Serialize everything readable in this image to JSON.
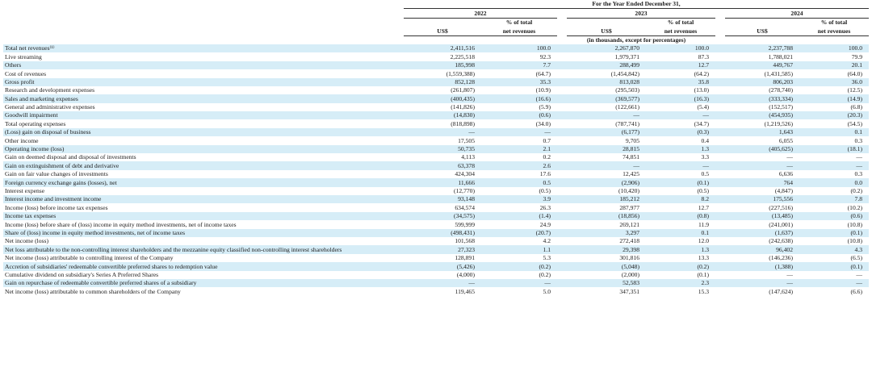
{
  "header": {
    "period_title": "For the Year Ended December 31,",
    "years": [
      "2022",
      "2023",
      "2024"
    ],
    "currency_label": "US$",
    "pct_label_line1": "% of total",
    "pct_label_line2": "net revenues",
    "units_note": "(in thousands, except for percentages)"
  },
  "rows": [
    {
      "label": "Total net revenues⁽¹⁾",
      "v2022": "2,411,516",
      "p2022": "100.0",
      "v2023": "2,267,870",
      "p2023": "100.0",
      "v2024": "2,237,788",
      "p2024": "100.0",
      "shade": true
    },
    {
      "label": "Live streaming",
      "v2022": "2,225,518",
      "p2022": "92.3",
      "v2023": "1,979,371",
      "p2023": "87.3",
      "v2024": "1,788,021",
      "p2024": "79.9",
      "shade": false
    },
    {
      "label": "Others",
      "v2022": "185,998",
      "p2022": "7.7",
      "v2023": "288,499",
      "p2023": "12.7",
      "v2024": "449,767",
      "p2024": "20.1",
      "shade": true
    },
    {
      "label": "Cost of revenues",
      "v2022": "(1,559,388)",
      "p2022": "(64.7)",
      "v2023": "(1,454,842)",
      "p2023": "(64.2)",
      "v2024": "(1,431,585)",
      "p2024": "(64.0)",
      "shade": false
    },
    {
      "label": "Gross profit",
      "v2022": "852,128",
      "p2022": "35.3",
      "v2023": "813,028",
      "p2023": "35.8",
      "v2024": "806,203",
      "p2024": "36.0",
      "shade": true
    },
    {
      "label": "Research and development expenses",
      "v2022": "(261,807)",
      "p2022": "(10.9)",
      "v2023": "(295,503)",
      "p2023": "(13.0)",
      "v2024": "(278,740)",
      "p2024": "(12.5)",
      "shade": false
    },
    {
      "label": "Sales and marketing expenses",
      "v2022": "(400,435)",
      "p2022": "(16.6)",
      "v2023": "(369,577)",
      "p2023": "(16.3)",
      "v2024": "(333,334)",
      "p2024": "(14.9)",
      "shade": true
    },
    {
      "label": "General and administrative expenses",
      "v2022": "(141,826)",
      "p2022": "(5.9)",
      "v2023": "(122,661)",
      "p2023": "(5.4)",
      "v2024": "(152,517)",
      "p2024": "(6.8)",
      "shade": false
    },
    {
      "label": "Goodwill impairment",
      "v2022": "(14,830)",
      "p2022": "(0.6)",
      "v2023": "—",
      "p2023": "—",
      "v2024": "(454,935)",
      "p2024": "(20.3)",
      "shade": true
    },
    {
      "label": "Total operating expenses",
      "v2022": "(818,898)",
      "p2022": "(34.0)",
      "v2023": "(787,741)",
      "p2023": "(34.7)",
      "v2024": "(1,219,526)",
      "p2024": "(54.5)",
      "shade": false
    },
    {
      "label": "(Loss) gain on disposal of business",
      "v2022": "—",
      "p2022": "—",
      "v2023": "(6,177)",
      "p2023": "(0.3)",
      "v2024": "1,643",
      "p2024": "0.1",
      "shade": true
    },
    {
      "label": "Other income",
      "v2022": "17,505",
      "p2022": "0.7",
      "v2023": "9,705",
      "p2023": "0.4",
      "v2024": "6,055",
      "p2024": "0.3",
      "shade": false
    },
    {
      "label": "Operating income (loss)",
      "v2022": "50,735",
      "p2022": "2.1",
      "v2023": "28,815",
      "p2023": "1.3",
      "v2024": "(405,625)",
      "p2024": "(18.1)",
      "shade": true
    },
    {
      "label": "Gain on deemed disposal and disposal of investments",
      "v2022": "4,113",
      "p2022": "0.2",
      "v2023": "74,851",
      "p2023": "3.3",
      "v2024": "—",
      "p2024": "—",
      "shade": false
    },
    {
      "label": "Gain on extinguishment of debt and derivative",
      "v2022": "63,378",
      "p2022": "2.6",
      "v2023": "—",
      "p2023": "—",
      "v2024": "—",
      "p2024": "—",
      "shade": true
    },
    {
      "label": "Gain on fair value changes of investments",
      "v2022": "424,304",
      "p2022": "17.6",
      "v2023": "12,425",
      "p2023": "0.5",
      "v2024": "6,636",
      "p2024": "0.3",
      "shade": false
    },
    {
      "label": "Foreign currency exchange gains (losses), net",
      "v2022": "11,666",
      "p2022": "0.5",
      "v2023": "(2,906)",
      "p2023": "(0.1)",
      "v2024": "764",
      "p2024": "0.0",
      "shade": true
    },
    {
      "label": "Interest expense",
      "v2022": "(12,770)",
      "p2022": "(0.5)",
      "v2023": "(10,420)",
      "p2023": "(0.5)",
      "v2024": "(4,847)",
      "p2024": "(0.2)",
      "shade": false
    },
    {
      "label": "Interest income and investment income",
      "v2022": "93,148",
      "p2022": "3.9",
      "v2023": "185,212",
      "p2023": "8.2",
      "v2024": "175,556",
      "p2024": "7.8",
      "shade": true
    },
    {
      "label": "Income (loss) before income tax expenses",
      "v2022": "634,574",
      "p2022": "26.3",
      "v2023": "287,977",
      "p2023": "12.7",
      "v2024": "(227,516)",
      "p2024": "(10.2)",
      "shade": false
    },
    {
      "label": "Income tax expenses",
      "v2022": "(34,575)",
      "p2022": "(1.4)",
      "v2023": "(18,856)",
      "p2023": "(0.8)",
      "v2024": "(13,485)",
      "p2024": "(0.6)",
      "shade": true
    },
    {
      "label": "Income (loss) before share of (loss) income in equity method investments, net of income taxes",
      "v2022": "599,999",
      "p2022": "24.9",
      "v2023": "269,121",
      "p2023": "11.9",
      "v2024": "(241,001)",
      "p2024": "(10.8)",
      "shade": false
    },
    {
      "label": "Share of (loss) income in equity method investments, net of income taxes",
      "v2022": "(498,431)",
      "p2022": "(20.7)",
      "v2023": "3,297",
      "p2023": "0.1",
      "v2024": "(1,637)",
      "p2024": "(0.1)",
      "shade": true
    },
    {
      "label": "Net income (loss)",
      "v2022": "101,568",
      "p2022": "4.2",
      "v2023": "272,418",
      "p2023": "12.0",
      "v2024": "(242,638)",
      "p2024": "(10.8)",
      "shade": false
    },
    {
      "label": "Net loss attributable to the non-controlling interest shareholders and the mezzanine equity classified non-controlling interest shareholders",
      "v2022": "27,323",
      "p2022": "1.1",
      "v2023": "29,398",
      "p2023": "1.3",
      "v2024": "96,402",
      "p2024": "4.3",
      "shade": true,
      "wrap": true
    },
    {
      "label": "Net income (loss) attributable to controlling interest of the Company",
      "v2022": "128,891",
      "p2022": "5.3",
      "v2023": "301,816",
      "p2023": "13.3",
      "v2024": "(146,236)",
      "p2024": "(6.5)",
      "shade": false
    },
    {
      "label": "Accretion of subsidiaries' redeemable convertible preferred shares to redemption value",
      "v2022": "(5,426)",
      "p2022": "(0.2)",
      "v2023": "(5,048)",
      "p2023": "(0.2)",
      "v2024": "(1,388)",
      "p2024": "(0.1)",
      "shade": true
    },
    {
      "label": "Cumulative dividend on subsidiary's Series A Preferred Shares",
      "v2022": "(4,000)",
      "p2022": "(0.2)",
      "v2023": "(2,000)",
      "p2023": "(0.1)",
      "v2024": "—",
      "p2024": "—",
      "shade": false
    },
    {
      "label": "Gain on repurchase of redeemable convertible preferred shares of a subsidiary",
      "v2022": "—",
      "p2022": "—",
      "v2023": "52,583",
      "p2023": "2.3",
      "v2024": "—",
      "p2024": "—",
      "shade": true
    },
    {
      "label": "Net income (loss) attributable to common shareholders of the Company",
      "v2022": "119,465",
      "p2022": "5.0",
      "v2023": "347,351",
      "p2023": "15.3",
      "v2024": "(147,624)",
      "p2024": "(6.6)",
      "shade": false
    }
  ]
}
